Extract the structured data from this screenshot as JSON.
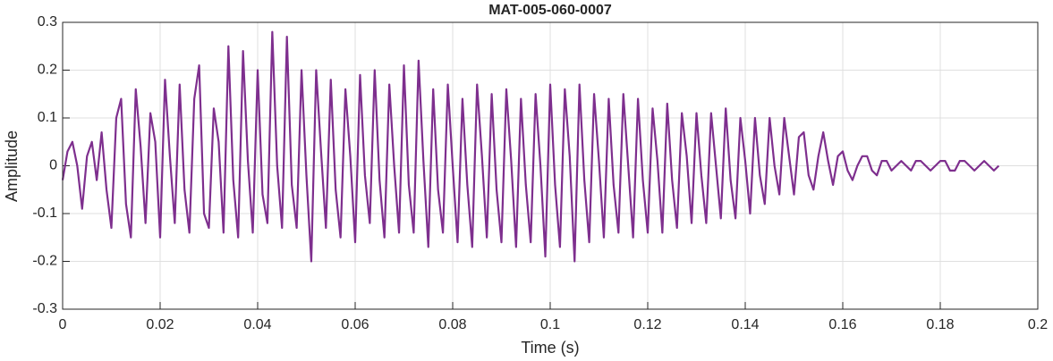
{
  "chart_data": {
    "type": "line",
    "title": "MAT-005-060-0007",
    "xlabel": "Time (s)",
    "ylabel": "Amplitude",
    "x": [
      0,
      0.001,
      0.002,
      0.003,
      0.004,
      0.005,
      0.006,
      0.007,
      0.008,
      0.009,
      0.01,
      0.011,
      0.012,
      0.013,
      0.014,
      0.015,
      0.016,
      0.017,
      0.018,
      0.019,
      0.02,
      0.021,
      0.022,
      0.023,
      0.024,
      0.025,
      0.026,
      0.027,
      0.028,
      0.029,
      0.03,
      0.031,
      0.032,
      0.033,
      0.034,
      0.035,
      0.036,
      0.037,
      0.038,
      0.039,
      0.04,
      0.041,
      0.042,
      0.043,
      0.044,
      0.045,
      0.046,
      0.047,
      0.048,
      0.049,
      0.05,
      0.051,
      0.052,
      0.053,
      0.054,
      0.055,
      0.056,
      0.057,
      0.058,
      0.059,
      0.06,
      0.061,
      0.062,
      0.063,
      0.064,
      0.065,
      0.066,
      0.067,
      0.068,
      0.069,
      0.07,
      0.071,
      0.072,
      0.073,
      0.074,
      0.075,
      0.076,
      0.077,
      0.078,
      0.079,
      0.08,
      0.081,
      0.082,
      0.083,
      0.084,
      0.085,
      0.086,
      0.087,
      0.088,
      0.089,
      0.09,
      0.091,
      0.092,
      0.093,
      0.094,
      0.095,
      0.096,
      0.097,
      0.098,
      0.099,
      0.1,
      0.101,
      0.102,
      0.103,
      0.104,
      0.105,
      0.106,
      0.107,
      0.108,
      0.109,
      0.11,
      0.111,
      0.112,
      0.113,
      0.114,
      0.115,
      0.116,
      0.117,
      0.118,
      0.119,
      0.12,
      0.121,
      0.122,
      0.123,
      0.124,
      0.125,
      0.126,
      0.127,
      0.128,
      0.129,
      0.13,
      0.131,
      0.132,
      0.133,
      0.134,
      0.135,
      0.136,
      0.137,
      0.138,
      0.139,
      0.14,
      0.141,
      0.142,
      0.143,
      0.144,
      0.145,
      0.146,
      0.147,
      0.148,
      0.149,
      0.15,
      0.151,
      0.152,
      0.153,
      0.154,
      0.155,
      0.156,
      0.157,
      0.158,
      0.159,
      0.16,
      0.161,
      0.162,
      0.163,
      0.164,
      0.165,
      0.166,
      0.167,
      0.168,
      0.169,
      0.17,
      0.171,
      0.172,
      0.173,
      0.174,
      0.175,
      0.176,
      0.177,
      0.178,
      0.179,
      0.18,
      0.181,
      0.182,
      0.183,
      0.184,
      0.185,
      0.186,
      0.187,
      0.188,
      0.189,
      0.19,
      0.191,
      0.192
    ],
    "series": [
      {
        "color": "#7e2f8e",
        "values": [
          -0.03,
          0.03,
          0.05,
          0.0,
          -0.09,
          0.02,
          0.05,
          -0.03,
          0.07,
          -0.05,
          -0.13,
          0.1,
          0.14,
          -0.08,
          -0.15,
          0.16,
          0.04,
          -0.12,
          0.11,
          0.05,
          -0.15,
          0.18,
          0.02,
          -0.12,
          0.17,
          -0.05,
          -0.14,
          0.14,
          0.21,
          -0.1,
          -0.13,
          0.12,
          0.05,
          -0.14,
          0.25,
          -0.03,
          -0.15,
          0.24,
          0.01,
          -0.14,
          0.2,
          -0.06,
          -0.12,
          0.28,
          0.0,
          -0.13,
          0.27,
          -0.04,
          -0.13,
          0.2,
          -0.02,
          -0.2,
          0.2,
          0.03,
          -0.13,
          0.18,
          -0.05,
          -0.15,
          0.16,
          0.02,
          -0.16,
          0.19,
          -0.02,
          -0.12,
          0.2,
          -0.03,
          -0.15,
          0.17,
          0.0,
          -0.14,
          0.21,
          -0.04,
          -0.14,
          0.22,
          0.01,
          -0.17,
          0.16,
          -0.05,
          -0.14,
          0.17,
          0.0,
          -0.16,
          0.14,
          -0.04,
          -0.17,
          0.17,
          0.02,
          -0.15,
          0.15,
          -0.05,
          -0.16,
          0.16,
          0.01,
          -0.17,
          0.14,
          -0.04,
          -0.16,
          0.15,
          0.0,
          -0.19,
          0.17,
          -0.04,
          -0.17,
          0.16,
          0.02,
          -0.2,
          0.17,
          -0.03,
          -0.16,
          0.15,
          0.01,
          -0.15,
          0.14,
          -0.04,
          -0.14,
          0.15,
          0.0,
          -0.15,
          0.14,
          -0.03,
          -0.14,
          0.12,
          0.01,
          -0.14,
          0.13,
          -0.03,
          -0.13,
          0.11,
          0.02,
          -0.12,
          0.11,
          -0.02,
          -0.12,
          0.11,
          0.0,
          -0.11,
          0.12,
          -0.03,
          -0.11,
          0.1,
          0.01,
          -0.1,
          0.1,
          -0.02,
          -0.08,
          0.1,
          0.0,
          -0.06,
          0.1,
          0.02,
          -0.06,
          0.06,
          0.07,
          -0.02,
          -0.05,
          0.02,
          0.07,
          0.01,
          -0.04,
          0.02,
          0.03,
          -0.01,
          -0.03,
          0.0,
          0.02,
          0.02,
          -0.01,
          -0.02,
          0.01,
          0.01,
          -0.01,
          0.0,
          0.01,
          0.0,
          -0.01,
          0.01,
          0.01,
          0.0,
          -0.01,
          0.0,
          0.01,
          0.01,
          -0.01,
          -0.01,
          0.01,
          0.01,
          0.0,
          -0.01,
          0.0,
          0.01,
          0.0,
          -0.01,
          0.0
        ]
      }
    ],
    "xlim": [
      0,
      0.2
    ],
    "xticks": [
      0,
      0.02,
      0.04,
      0.06,
      0.08,
      0.1,
      0.12,
      0.14,
      0.16,
      0.18,
      0.2
    ],
    "ylim": [
      -0.3,
      0.3
    ],
    "yticks": [
      -0.3,
      -0.2,
      -0.1,
      0,
      0.1,
      0.2,
      0.3
    ],
    "grid": true
  }
}
